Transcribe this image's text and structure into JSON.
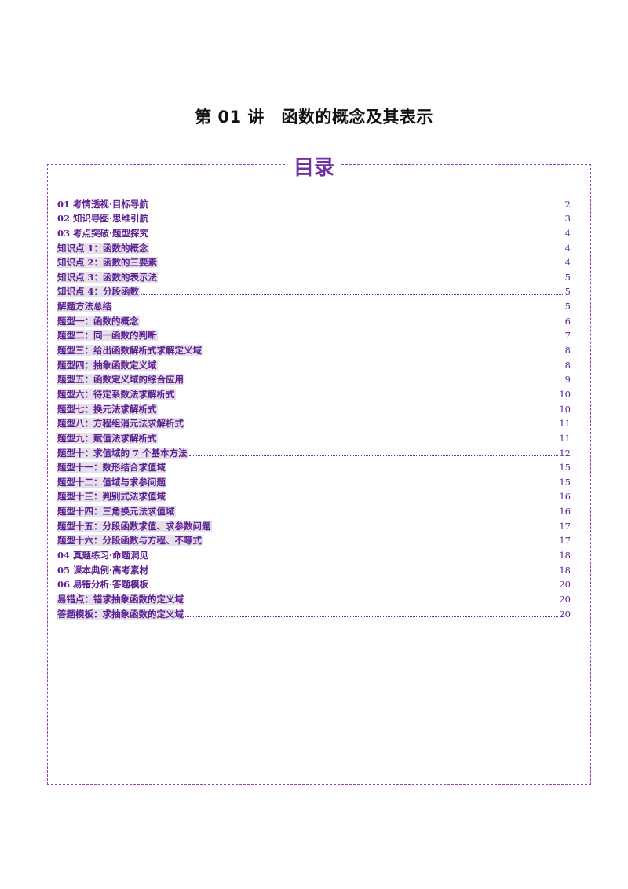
{
  "document": {
    "title": "第 01 讲　函数的概念及其表示",
    "toc_heading": "目录"
  },
  "toc": [
    {
      "label": "01 考情透视·目标导航",
      "page": "2",
      "shaded": false
    },
    {
      "label": "02 知识导图·思维引航",
      "page": "3",
      "shaded": false
    },
    {
      "label": "03 考点突破·题型探究",
      "page": "4",
      "shaded": false
    },
    {
      "label": "知识点 1：函数的概念",
      "page": "4",
      "shaded": true
    },
    {
      "label": "知识点 2：函数的三要素",
      "page": "4",
      "shaded": true
    },
    {
      "label": "知识点 3：函数的表示法",
      "page": "5",
      "shaded": true
    },
    {
      "label": "知识点 4：分段函数",
      "page": "5",
      "shaded": true
    },
    {
      "label": "解题方法总结",
      "page": "5",
      "shaded": true
    },
    {
      "label": "题型一：函数的概念",
      "page": "6",
      "shaded": true
    },
    {
      "label": "题型二：同一函数的判断",
      "page": "7",
      "shaded": true
    },
    {
      "label": "题型三：给出函数解析式求解定义域",
      "page": "8",
      "shaded": true
    },
    {
      "label": "题型四：抽象函数定义域",
      "page": "8",
      "shaded": true
    },
    {
      "label": "题型五：函数定义域的综合应用",
      "page": "9",
      "shaded": true
    },
    {
      "label": "题型六：待定系数法求解析式",
      "page": "10",
      "shaded": true
    },
    {
      "label": "题型七：换元法求解析式",
      "page": "10",
      "shaded": true
    },
    {
      "label": "题型八：方程组消元法求解析式",
      "page": "11",
      "shaded": true
    },
    {
      "label": "题型九：赋值法求解析式",
      "page": "11",
      "shaded": true
    },
    {
      "label": "题型十：求值域的 7 个基本方法",
      "page": "12",
      "shaded": true
    },
    {
      "label": "题型十一：数形结合求值域",
      "page": "15",
      "shaded": true
    },
    {
      "label": "题型十二：值域与求参问题",
      "page": "15",
      "shaded": true
    },
    {
      "label": "题型十三：判别式法求值域",
      "page": "16",
      "shaded": true
    },
    {
      "label": "题型十四：三角换元法求值域",
      "page": "16",
      "shaded": true
    },
    {
      "label": "题型十五：分段函数求值、求参数问题",
      "page": "17",
      "shaded": true
    },
    {
      "label": "题型十六：分段函数与方程、不等式",
      "page": "17",
      "shaded": true
    },
    {
      "label": "04 真题练习·命题洞见",
      "page": "18",
      "shaded": false
    },
    {
      "label": "05 课本典例·高考素材",
      "page": "18",
      "shaded": false
    },
    {
      "label": "06 易错分析·答题模板",
      "page": "20",
      "shaded": false
    },
    {
      "label": "易错点：错求抽象函数的定义域",
      "page": "20",
      "shaded": true
    },
    {
      "label": "答题模板：求抽象函数的定义域",
      "page": "20",
      "shaded": true
    }
  ]
}
